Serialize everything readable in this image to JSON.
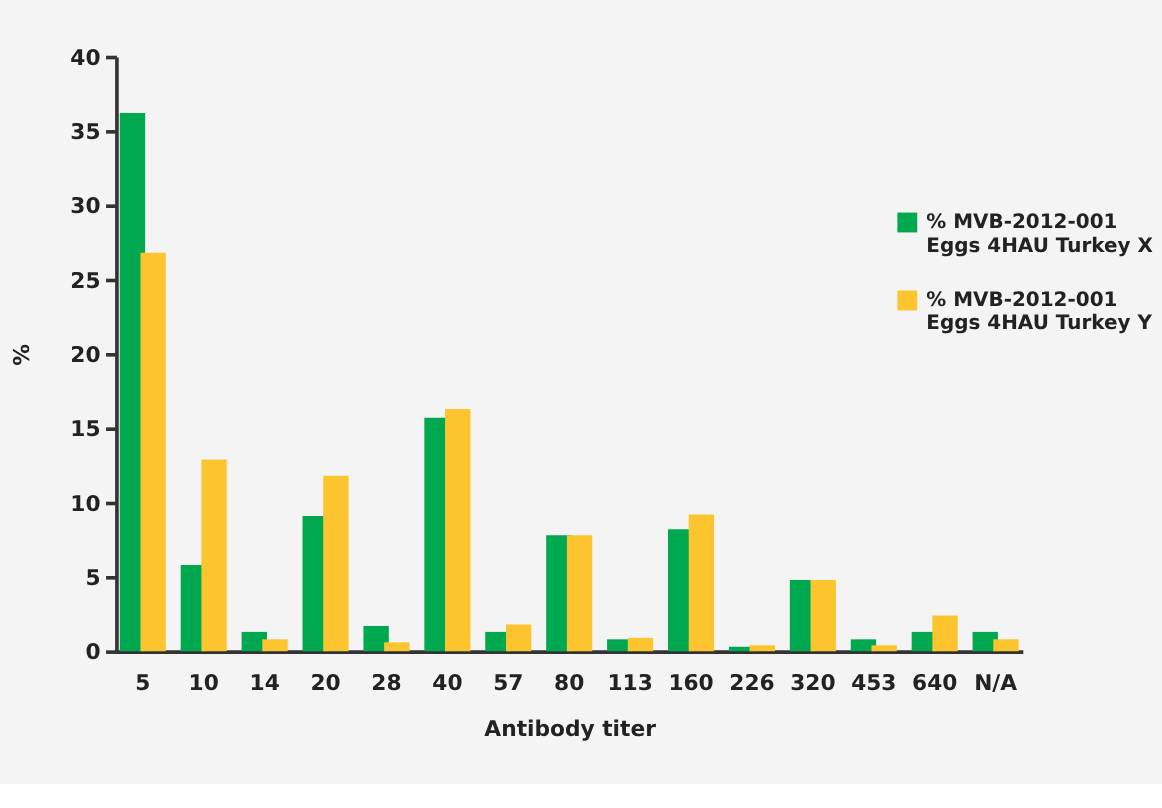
{
  "chart_data": {
    "type": "bar",
    "xlabel": "Antibody titer",
    "ylabel": "%",
    "categories": [
      "5",
      "10",
      "14",
      "20",
      "28",
      "40",
      "57",
      "80",
      "113",
      "160",
      "226",
      "320",
      "453",
      "640",
      "N/A"
    ],
    "series": [
      {
        "name": "% MVB-2012-001\nEggs 4HAU Turkey X",
        "color": "#00a94f",
        "values": [
          36.2,
          5.8,
          1.3,
          9.1,
          1.7,
          15.7,
          1.3,
          7.8,
          0.8,
          8.2,
          0.3,
          4.8,
          0.8,
          1.3,
          1.3
        ]
      },
      {
        "name": "% MVB-2012-001\nEggs 4HAU Turkey Y",
        "color": "#fcc530",
        "values": [
          26.8,
          12.9,
          0.8,
          11.8,
          0.6,
          16.3,
          1.8,
          7.8,
          0.9,
          9.2,
          0.4,
          4.8,
          0.4,
          2.4,
          0.8
        ]
      }
    ],
    "ylim": [
      0,
      40
    ],
    "yticks": [
      0,
      5,
      10,
      15,
      20,
      25,
      30,
      35,
      40
    ],
    "grid": false,
    "legend": "top right"
  }
}
